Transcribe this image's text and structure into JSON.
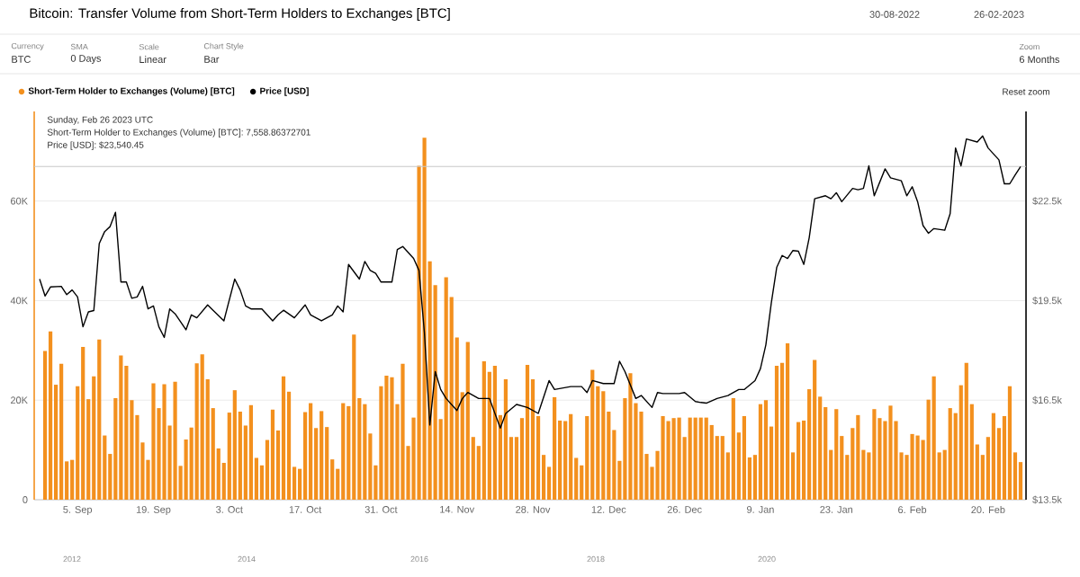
{
  "chart_data": {
    "type": "bar",
    "title": "Bitcoin: Transfer Volume from Short-Term Holders to Exchanges [BTC]",
    "annotations": [
      "30-08-2022",
      "26-02-2023",
      "Currency",
      "BTC",
      "SMA",
      "0 Days",
      "Scale",
      "Linear",
      "Chart Style",
      "Bar",
      "Zoom",
      "6 Months",
      "Reset zoom",
      "Sunday, Feb 26 2023 UTC",
      "Short-Term Holder to Exchanges (Volume) [BTC]: 7,558.86372701",
      "Price [USD]: $23,540.45",
      "2012",
      "2014",
      "2016",
      "2018",
      "2020"
    ],
    "xlim": [
      "2022-08-28",
      "2023-02-27"
    ],
    "xticks": [
      {
        "value": "2022-09-05",
        "label": "5. Sep"
      },
      {
        "value": "2022-09-19",
        "label": "19. Sep"
      },
      {
        "value": "2022-10-03",
        "label": "3. Oct"
      },
      {
        "value": "2022-10-17",
        "label": "17. Oct"
      },
      {
        "value": "2022-10-31",
        "label": "31. Oct"
      },
      {
        "value": "2022-11-14",
        "label": "14. Nov"
      },
      {
        "value": "2022-11-28",
        "label": "28. Nov"
      },
      {
        "value": "2022-12-12",
        "label": "12. Dec"
      },
      {
        "value": "2022-12-26",
        "label": "26. Dec"
      },
      {
        "value": "2023-01-09",
        "label": "9. Jan"
      },
      {
        "value": "2023-01-23",
        "label": "23. Jan"
      },
      {
        "value": "2023-02-06",
        "label": "6. Feb"
      },
      {
        "value": "2023-02-20",
        "label": "20. Feb"
      }
    ],
    "ylim": [
      0,
      78000
    ],
    "yticks": [
      0,
      {
        "value": 20000,
        "label": "20K"
      },
      {
        "value": 40000,
        "label": "40K"
      },
      {
        "value": 60000,
        "label": "60K"
      }
    ],
    "y2lim": [
      13500,
      25200
    ],
    "y2ticks": [
      {
        "value": 13500,
        "label": "$13.5k"
      },
      {
        "value": 16500,
        "label": "$16.5k"
      },
      {
        "value": 19500,
        "label": "$19.5k"
      },
      {
        "value": 22500,
        "label": "$22.5k"
      }
    ],
    "grid": "y",
    "legend": "top left",
    "ref_lines": [
      {
        "axis": "y2",
        "value": 23540.45,
        "color": "#c8c8c8"
      }
    ],
    "series": [
      {
        "name": "Short-Term Holder to Exchanges (Volume) [BTC]",
        "color": "#f3901e",
        "x": [
          "2022-08-30",
          "2022-08-31",
          "2022-09-01",
          "2022-09-02",
          "2022-09-03",
          "2022-09-04",
          "2022-09-05",
          "2022-09-06",
          "2022-09-07",
          "2022-09-08",
          "2022-09-09",
          "2022-09-10",
          "2022-09-11",
          "2022-09-12",
          "2022-09-13",
          "2022-09-14",
          "2022-09-15",
          "2022-09-16",
          "2022-09-17",
          "2022-09-18",
          "2022-09-19",
          "2022-09-20",
          "2022-09-21",
          "2022-09-22",
          "2022-09-23",
          "2022-09-24",
          "2022-09-25",
          "2022-09-26",
          "2022-09-27",
          "2022-09-28",
          "2022-09-29",
          "2022-09-30",
          "2022-10-01",
          "2022-10-02",
          "2022-10-03",
          "2022-10-04",
          "2022-10-05",
          "2022-10-06",
          "2022-10-07",
          "2022-10-08",
          "2022-10-09",
          "2022-10-10",
          "2022-10-11",
          "2022-10-12",
          "2022-10-13",
          "2022-10-14",
          "2022-10-15",
          "2022-10-16",
          "2022-10-17",
          "2022-10-18",
          "2022-10-19",
          "2022-10-20",
          "2022-10-21",
          "2022-10-22",
          "2022-10-23",
          "2022-10-24",
          "2022-10-25",
          "2022-10-26",
          "2022-10-27",
          "2022-10-28",
          "2022-10-29",
          "2022-10-30",
          "2022-10-31",
          "2022-11-01",
          "2022-11-02",
          "2022-11-03",
          "2022-11-04",
          "2022-11-05",
          "2022-11-06",
          "2022-11-07",
          "2022-11-08",
          "2022-11-09",
          "2022-11-10",
          "2022-11-11",
          "2022-11-12",
          "2022-11-13",
          "2022-11-14",
          "2022-11-15",
          "2022-11-16",
          "2022-11-17",
          "2022-11-18",
          "2022-11-19",
          "2022-11-20",
          "2022-11-21",
          "2022-11-22",
          "2022-11-23",
          "2022-11-24",
          "2022-11-25",
          "2022-11-26",
          "2022-11-27",
          "2022-11-28",
          "2022-11-29",
          "2022-11-30",
          "2022-12-01",
          "2022-12-02",
          "2022-12-03",
          "2022-12-04",
          "2022-12-05",
          "2022-12-06",
          "2022-12-07",
          "2022-12-08",
          "2022-12-09",
          "2022-12-10",
          "2022-12-11",
          "2022-12-12",
          "2022-12-13",
          "2022-12-14",
          "2022-12-15",
          "2022-12-16",
          "2022-12-17",
          "2022-12-18",
          "2022-12-19",
          "2022-12-20",
          "2022-12-21",
          "2022-12-22",
          "2022-12-23",
          "2022-12-24",
          "2022-12-25",
          "2022-12-26",
          "2022-12-27",
          "2022-12-28",
          "2022-12-29",
          "2022-12-30",
          "2022-12-31",
          "2023-01-01",
          "2023-01-02",
          "2023-01-03",
          "2023-01-04",
          "2023-01-05",
          "2023-01-06",
          "2023-01-07",
          "2023-01-08",
          "2023-01-09",
          "2023-01-10",
          "2023-01-11",
          "2023-01-12",
          "2023-01-13",
          "2023-01-14",
          "2023-01-15",
          "2023-01-16",
          "2023-01-17",
          "2023-01-18",
          "2023-01-19",
          "2023-01-20",
          "2023-01-21",
          "2023-01-22",
          "2023-01-23",
          "2023-01-24",
          "2023-01-25",
          "2023-01-26",
          "2023-01-27",
          "2023-01-28",
          "2023-01-29",
          "2023-01-30",
          "2023-01-31",
          "2023-02-01",
          "2023-02-02",
          "2023-02-03",
          "2023-02-04",
          "2023-02-05",
          "2023-02-06",
          "2023-02-07",
          "2023-02-08",
          "2023-02-09",
          "2023-02-10",
          "2023-02-11",
          "2023-02-12",
          "2023-02-13",
          "2023-02-14",
          "2023-02-15",
          "2023-02-16",
          "2023-02-17",
          "2023-02-18",
          "2023-02-19",
          "2023-02-20",
          "2023-02-21",
          "2023-02-22",
          "2023-02-23",
          "2023-02-24",
          "2023-02-25",
          "2023-02-26"
        ],
        "values": [
          29900,
          33800,
          23100,
          27300,
          7700,
          8000,
          22800,
          30700,
          20200,
          24800,
          32200,
          12900,
          9200,
          20400,
          29000,
          26900,
          20000,
          17000,
          11500,
          8000,
          23400,
          18400,
          23200,
          14900,
          23700,
          6800,
          12100,
          14500,
          27400,
          29200,
          24200,
          18400,
          10300,
          7400,
          17500,
          22000,
          17700,
          14900,
          19000,
          8400,
          6900,
          12000,
          18100,
          13900,
          24800,
          21700,
          6600,
          6200,
          17600,
          19400,
          14400,
          17800,
          14600,
          8100,
          6200,
          19400,
          18800,
          33200,
          20400,
          19200,
          13300,
          6900,
          22800,
          24900,
          24600,
          19200,
          27300,
          10800,
          16500,
          67100,
          72700,
          47900,
          43100,
          16200,
          44700,
          40700,
          32600,
          21600,
          31700,
          12600,
          10800,
          27800,
          25700,
          26900,
          17000,
          24200,
          12600,
          12600,
          16400,
          27100,
          24200,
          16800,
          9000,
          6600,
          20600,
          15900,
          15800,
          17200,
          8400,
          6900,
          16800,
          26100,
          22800,
          21800,
          17700,
          14000,
          7800,
          20400,
          25400,
          19400,
          17700,
          9200,
          6600,
          9800,
          16800,
          15800,
          16400,
          16500,
          12600,
          16500,
          16500,
          16500,
          16500,
          15000,
          12800,
          12800,
          9500,
          20400,
          13500,
          16800,
          8500,
          9000,
          19200,
          20000,
          14700,
          26900,
          27500,
          31400,
          9500,
          15600,
          15900,
          22200,
          28100,
          20700,
          18600,
          10000,
          18200,
          12800,
          9000,
          14400,
          17000,
          10000,
          9500,
          18200,
          16400,
          15800,
          18900,
          15800,
          9500,
          9000,
          13200,
          12900,
          12000,
          20100,
          24800,
          9500,
          10000,
          18400,
          17400,
          23000,
          27500,
          19200,
          11100,
          9000,
          12600,
          17400,
          14400,
          16800,
          22800,
          9500,
          7558.86
        ]
      },
      {
        "name": "Price [USD]",
        "type": "line",
        "axis": "y2",
        "color": "#000000",
        "x": [
          "2022-08-29",
          "2022-08-30",
          "2022-08-31",
          "2022-09-02",
          "2022-09-03",
          "2022-09-04",
          "2022-09-05",
          "2022-09-06",
          "2022-09-07",
          "2022-09-08",
          "2022-09-09",
          "2022-09-10",
          "2022-09-11",
          "2022-09-12",
          "2022-09-13",
          "2022-09-14",
          "2022-09-15",
          "2022-09-16",
          "2022-09-17",
          "2022-09-18",
          "2022-09-19",
          "2022-09-20",
          "2022-09-21",
          "2022-09-22",
          "2022-09-23",
          "2022-09-25",
          "2022-09-26",
          "2022-09-27",
          "2022-09-29",
          "2022-09-30",
          "2022-10-02",
          "2022-10-04",
          "2022-10-05",
          "2022-10-06",
          "2022-10-07",
          "2022-10-09",
          "2022-10-11",
          "2022-10-12",
          "2022-10-13",
          "2022-10-15",
          "2022-10-17",
          "2022-10-18",
          "2022-10-20",
          "2022-10-22",
          "2022-10-23",
          "2022-10-24",
          "2022-10-25",
          "2022-10-27",
          "2022-10-28",
          "2022-10-29",
          "2022-10-30",
          "2022-10-31",
          "2022-11-02",
          "2022-11-03",
          "2022-11-04",
          "2022-11-06",
          "2022-11-07",
          "2022-11-08",
          "2022-11-09",
          "2022-11-10",
          "2022-11-11",
          "2022-11-12",
          "2022-11-14",
          "2022-11-15",
          "2022-11-16",
          "2022-11-18",
          "2022-11-20",
          "2022-11-22",
          "2022-11-23",
          "2022-11-25",
          "2022-11-27",
          "2022-11-29",
          "2022-12-01",
          "2022-12-02",
          "2022-12-05",
          "2022-12-07",
          "2022-12-08",
          "2022-12-09",
          "2022-12-11",
          "2022-12-13",
          "2022-12-14",
          "2022-12-15",
          "2022-12-17",
          "2022-12-18",
          "2022-12-20",
          "2022-12-21",
          "2022-12-22",
          "2022-12-25",
          "2022-12-26",
          "2022-12-28",
          "2022-12-29",
          "2022-12-30",
          "2023-01-01",
          "2023-01-03",
          "2023-01-05",
          "2023-01-06",
          "2023-01-08",
          "2023-01-09",
          "2023-01-10",
          "2023-01-11",
          "2023-01-12",
          "2023-01-13",
          "2023-01-14",
          "2023-01-15",
          "2023-01-16",
          "2023-01-17",
          "2023-01-18",
          "2023-01-19",
          "2023-01-21",
          "2023-01-22",
          "2023-01-23",
          "2023-01-24",
          "2023-01-26",
          "2023-01-27",
          "2023-01-28",
          "2023-01-29",
          "2023-01-30",
          "2023-02-01",
          "2023-02-02",
          "2023-02-04",
          "2023-02-05",
          "2023-02-06",
          "2023-02-07",
          "2023-02-08",
          "2023-02-09",
          "2023-02-10",
          "2023-02-12",
          "2023-02-13",
          "2023-02-14",
          "2023-02-15",
          "2023-02-16",
          "2023-02-18",
          "2023-02-19",
          "2023-02-20",
          "2023-02-22",
          "2023-02-23",
          "2023-02-24",
          "2023-02-25",
          "2023-02-26"
        ],
        "values": [
          20150,
          19640,
          19910,
          19930,
          19680,
          19820,
          19610,
          18710,
          19160,
          19200,
          21220,
          21580,
          21730,
          22160,
          20060,
          20060,
          19570,
          19610,
          19930,
          19250,
          19340,
          18710,
          18390,
          19250,
          19100,
          18620,
          19070,
          18980,
          19370,
          19210,
          18890,
          20150,
          19820,
          19340,
          19250,
          19250,
          18890,
          19070,
          19210,
          18980,
          19370,
          19070,
          18890,
          19070,
          19340,
          19160,
          20590,
          20150,
          20680,
          20410,
          20320,
          20060,
          20060,
          21040,
          21130,
          20770,
          20410,
          18530,
          15750,
          17360,
          16820,
          16550,
          16190,
          16550,
          16730,
          16550,
          16550,
          15660,
          16100,
          16370,
          16280,
          16100,
          17090,
          16820,
          16910,
          16910,
          16730,
          17090,
          17000,
          17000,
          17670,
          17360,
          16550,
          16640,
          16280,
          16730,
          16700,
          16700,
          16730,
          16460,
          16430,
          16410,
          16550,
          16640,
          16820,
          16820,
          17090,
          17450,
          18170,
          19430,
          20500,
          20860,
          20770,
          21010,
          20990,
          20590,
          21400,
          22570,
          22660,
          22570,
          22750,
          22480,
          22880,
          22840,
          22880,
          23560,
          22660,
          23470,
          23200,
          23110,
          22660,
          22930,
          22480,
          21760,
          21530,
          21670,
          21620,
          22120,
          24100,
          23560,
          24370,
          24280,
          24460,
          24100,
          23740,
          23020,
          23020,
          23290,
          23540.45
        ]
      }
    ]
  }
}
